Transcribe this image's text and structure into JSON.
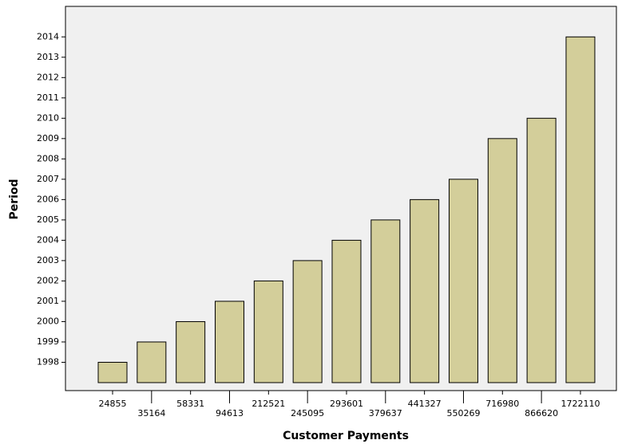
{
  "chart_data": {
    "type": "bar",
    "x_label": "Customer Payments",
    "y_label": "Period",
    "categories": [
      "24855",
      "35164",
      "58331",
      "94613",
      "212521",
      "245095",
      "293601",
      "379637",
      "441327",
      "550269",
      "716980",
      "866620",
      "1722110"
    ],
    "values": [
      1998,
      1999,
      2000,
      2001,
      2002,
      2003,
      2004,
      2005,
      2006,
      2007,
      2009,
      2010,
      2014
    ],
    "color": "#d3ce9a",
    "ylim": [
      1997,
      2015.5
    ],
    "yticks": [
      1998,
      1999,
      2000,
      2001,
      2002,
      2003,
      2004,
      2005,
      2006,
      2007,
      2008,
      2009,
      2010,
      2011,
      2012,
      2013,
      2014
    ]
  }
}
